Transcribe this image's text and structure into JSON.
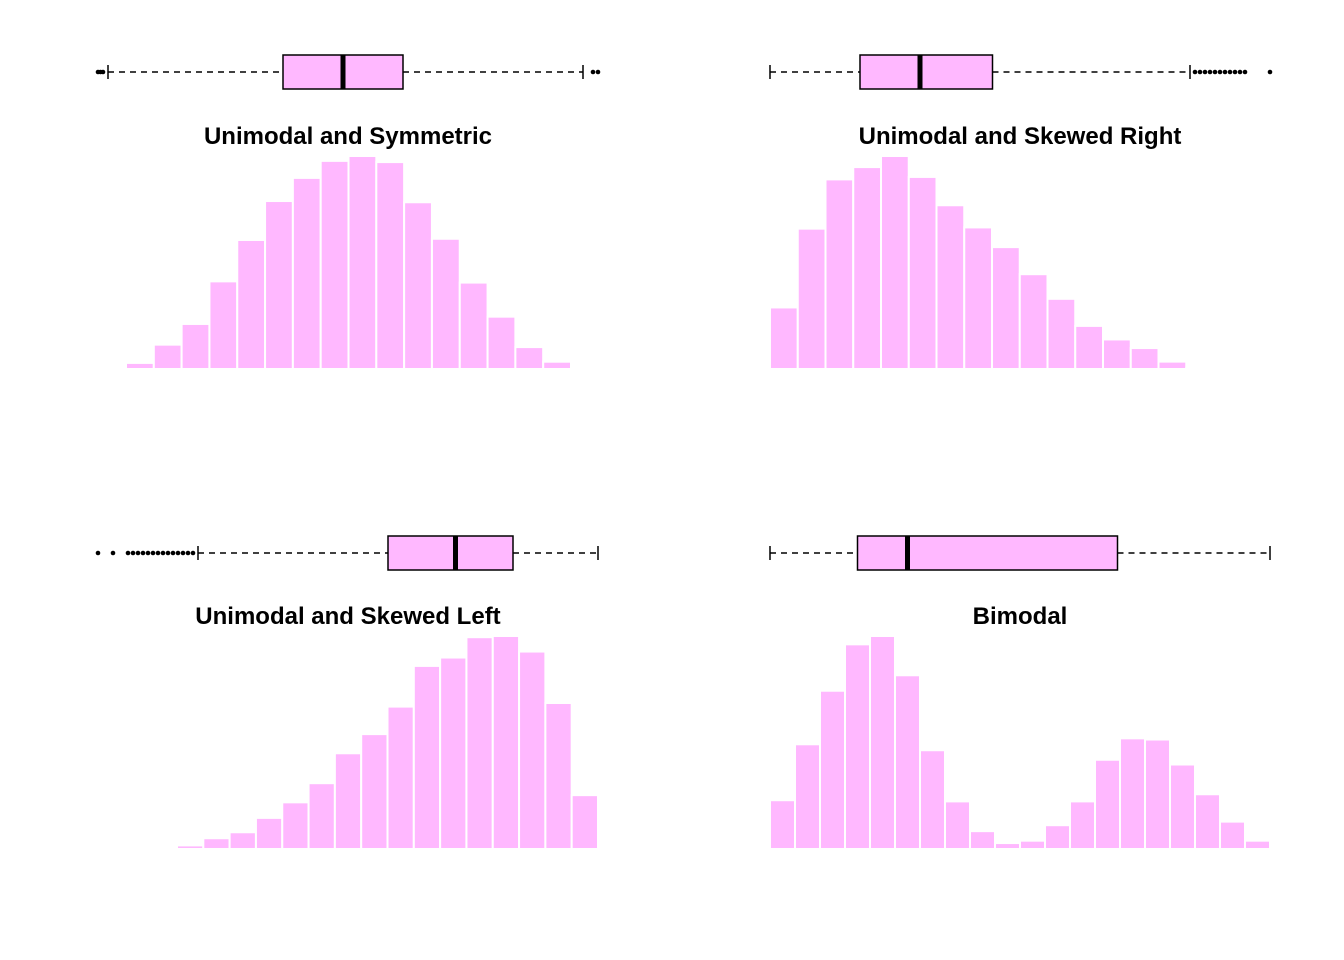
{
  "colors": {
    "fill": "#ffb8ff",
    "bar_edge": "#ffffff",
    "stroke": "#000000",
    "background": "#ffffff"
  },
  "chart_data": [
    {
      "type": "bar",
      "title": "Unimodal and Symmetric",
      "histogram": {
        "values": [
          5,
          20,
          37,
          72,
          106,
          138,
          157,
          171,
          175,
          170,
          137,
          107,
          71,
          43,
          18,
          6
        ]
      },
      "boxplot": {
        "whisker_low": 0.02,
        "q1": 0.37,
        "median": 0.49,
        "q3": 0.61,
        "whisker_high": 0.97,
        "outliers": [
          0.0,
          0.005,
          0.01,
          0.99,
          1.0
        ]
      },
      "xlim": [
        0,
        1
      ],
      "grid": false
    },
    {
      "type": "bar",
      "title": "Unimodal and Skewed Right",
      "histogram": {
        "values": [
          50,
          114,
          154,
          164,
          173,
          156,
          133,
          115,
          99,
          77,
          57,
          35,
          24,
          17,
          6,
          1
        ]
      },
      "boxplot": {
        "whisker_low": 0.0,
        "q1": 0.18,
        "median": 0.3,
        "q3": 0.445,
        "whisker_high": 0.84,
        "outliers": [
          0.85,
          0.86,
          0.87,
          0.88,
          0.89,
          0.9,
          0.91,
          0.92,
          0.93,
          0.94,
          0.95,
          1.0
        ]
      },
      "xlim": [
        0,
        1
      ],
      "grid": false
    },
    {
      "type": "bar",
      "title": "Unimodal and Skewed Left",
      "histogram": {
        "values": [
          3,
          9,
          14,
          26,
          39,
          55,
          80,
          96,
          119,
          153,
          160,
          177,
          178,
          165,
          122,
          45
        ]
      },
      "boxplot": {
        "whisker_low": 0.2,
        "q1": 0.58,
        "median": 0.715,
        "q3": 0.83,
        "whisker_high": 1.0,
        "outliers": [
          0.0,
          0.03,
          0.06,
          0.07,
          0.08,
          0.09,
          0.1,
          0.11,
          0.12,
          0.13,
          0.14,
          0.15,
          0.16,
          0.17,
          0.18,
          0.19
        ]
      },
      "xlim": [
        0,
        1
      ],
      "grid": false
    },
    {
      "type": "bar",
      "title": "Bimodal",
      "histogram": {
        "values": [
          41,
          88,
          133,
          172,
          179,
          146,
          83,
          40,
          15,
          5,
          7,
          20,
          40,
          75,
          93,
          92,
          71,
          46,
          23,
          7
        ]
      },
      "boxplot": {
        "whisker_low": 0.0,
        "q1": 0.175,
        "median": 0.275,
        "q3": 0.695,
        "whisker_high": 1.0,
        "outliers": []
      },
      "xlim": [
        0,
        1
      ],
      "grid": false
    }
  ]
}
